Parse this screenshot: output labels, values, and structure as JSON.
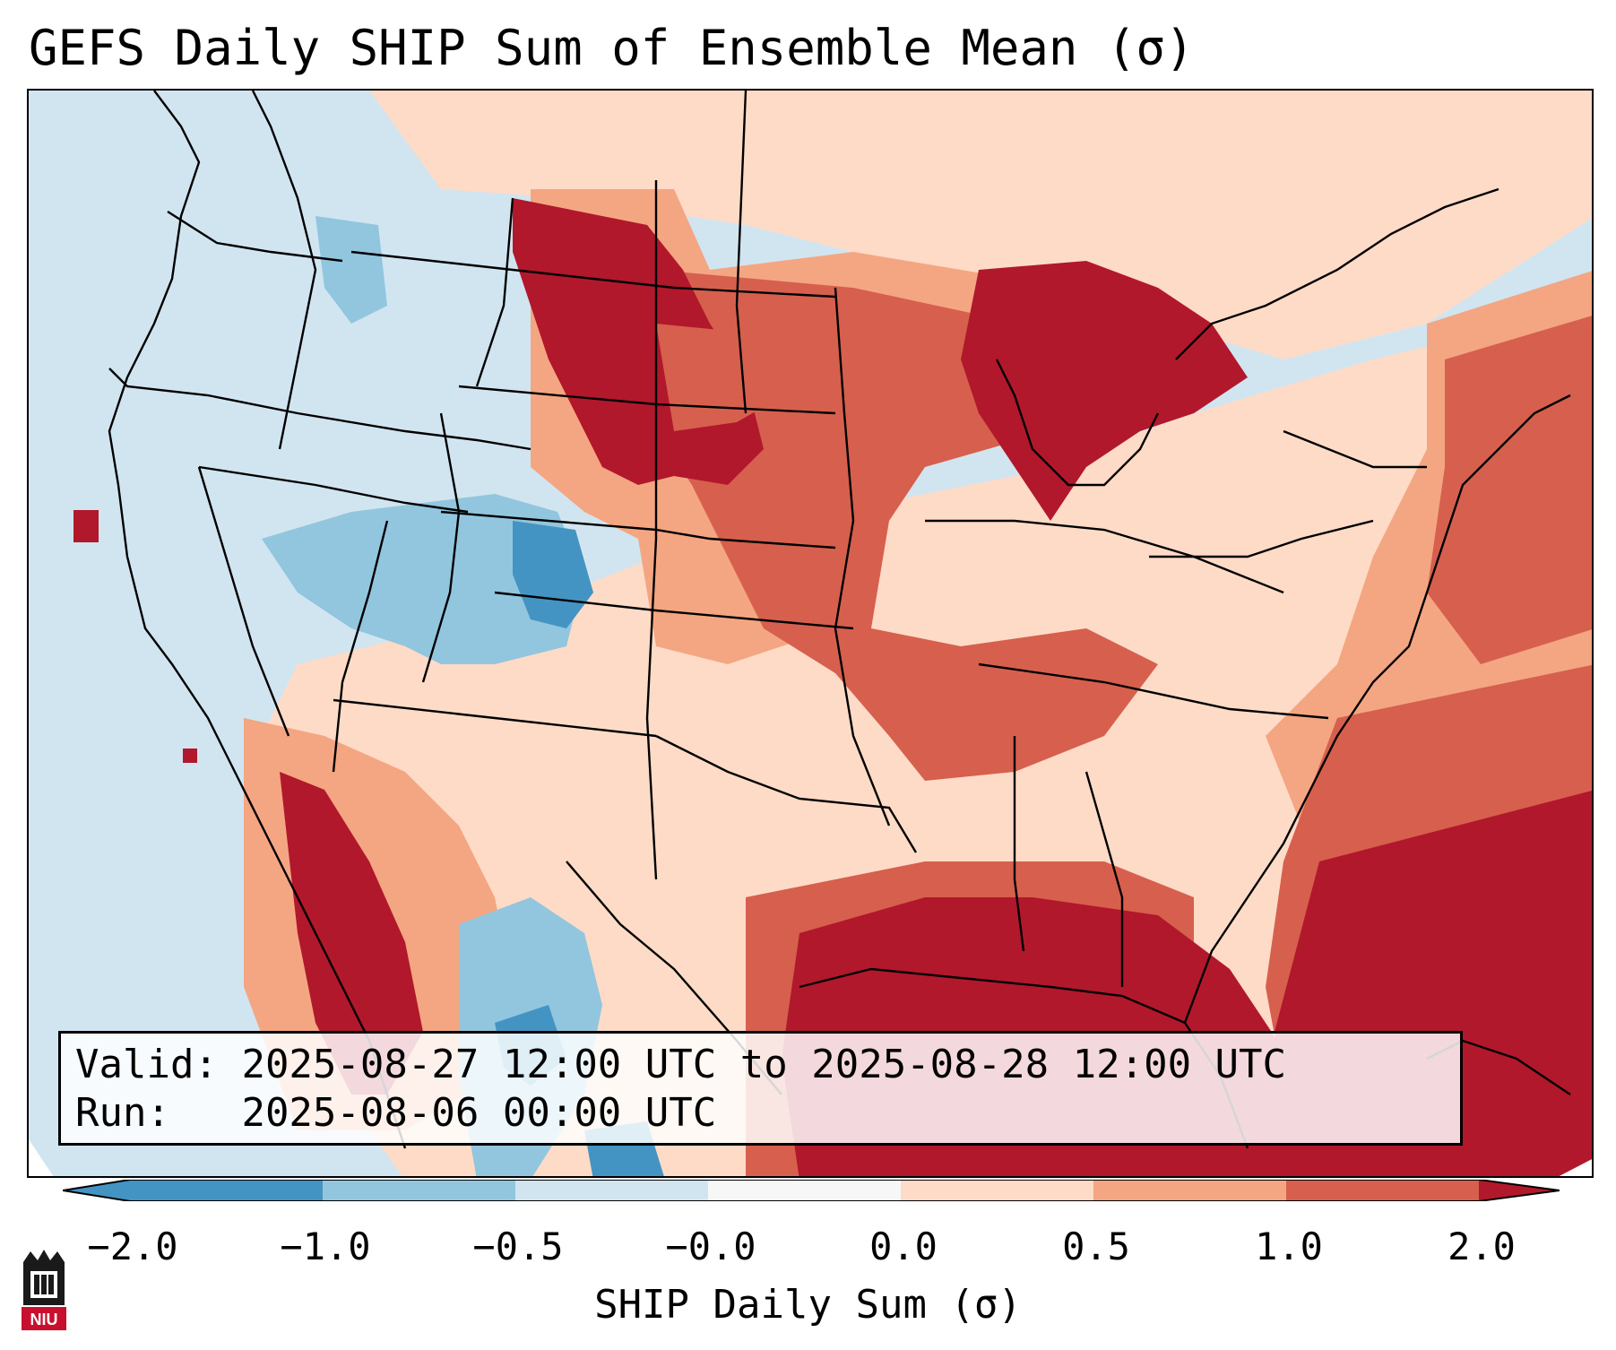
{
  "title": "GEFS Daily SHIP Sum of Ensemble Mean (σ)",
  "info": {
    "valid_label": "Valid:",
    "valid_value": "2025-08-27 12:00 UTC to 2025-08-28 12:00 UTC",
    "run_label": "Run:",
    "run_value": "2025-08-06 00:00 UTC"
  },
  "colorbar": {
    "label": "SHIP Daily Sum (σ)",
    "ticks": [
      "−2.0",
      "−1.0",
      "−0.5",
      "−0.0",
      "0.0",
      "0.5",
      "1.0",
      "2.0"
    ],
    "colors": [
      "#4393c3",
      "#92c5de",
      "#d1e5f0",
      "#f7f7f7",
      "#fddbc7",
      "#f4a582",
      "#d6604d",
      "#b2182b"
    ],
    "extend": "both"
  },
  "map": {
    "projection": "Lambert conformal",
    "region": "Continental United States",
    "features": [
      "state boundaries",
      "coastlines",
      "country borders",
      "lakes"
    ],
    "regions": [
      {
        "area": "Pacific Ocean / West Coast",
        "category": "-0.5 to -0.0"
      },
      {
        "area": "Great Basin / Colorado",
        "category": "-1.0 to -0.5"
      },
      {
        "area": "Central Colorado",
        "category": "-2.0 to -1.0"
      },
      {
        "area": "Montana / Wyoming / Dakotas",
        "category": "above 2.0"
      },
      {
        "area": "Great Lakes",
        "category": "above 2.0"
      },
      {
        "area": "Midwest",
        "category": "1.0 to 2.0"
      },
      {
        "area": "Southern Plains / Southeast",
        "category": "0.0 to 0.5"
      },
      {
        "area": "Gulf of Mexico",
        "category": "above 2.0"
      },
      {
        "area": "Western Atlantic",
        "category": "1.0 to 2.0"
      }
    ]
  },
  "logo": {
    "text": "NIU"
  }
}
